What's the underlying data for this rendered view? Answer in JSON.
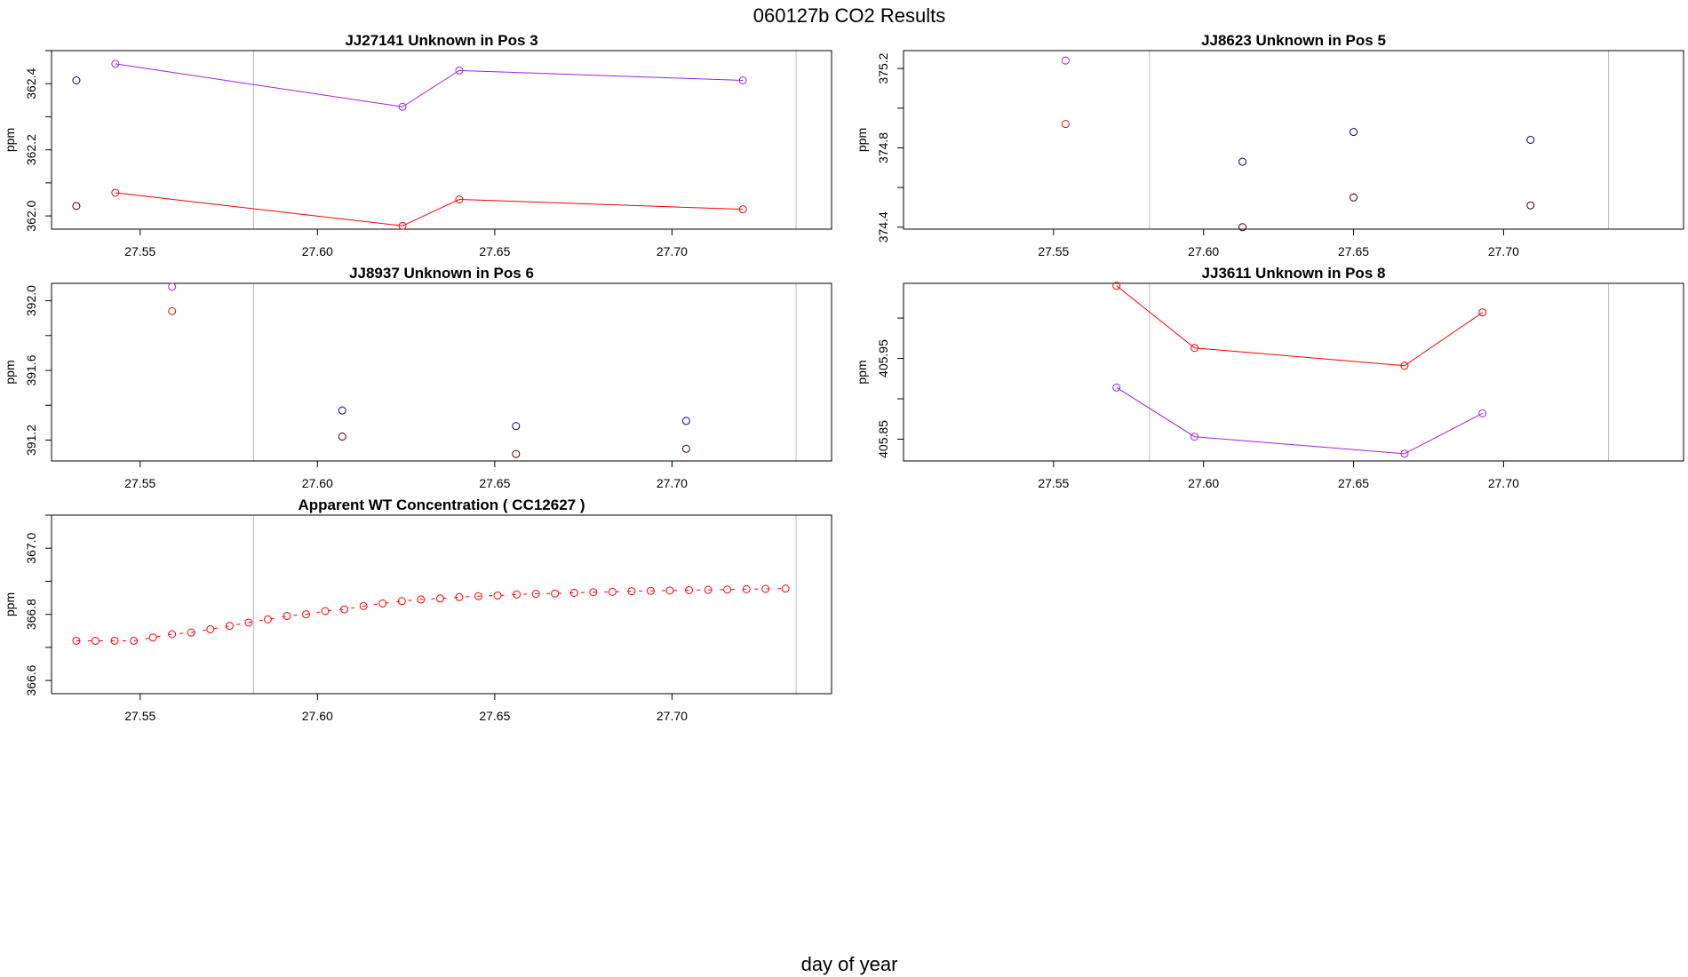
{
  "main_title": "060127b  CO2 Results",
  "xlabel": "day of year",
  "colors": {
    "purple": "#a020f0",
    "red": "#ff0000",
    "navy": "#000080",
    "dark": "#400000",
    "frame": "#000000",
    "vline": "#bebebe"
  },
  "chart_data": [
    {
      "type": "line",
      "title": "JJ27141    Unknown in Pos 3",
      "ylabel": "ppm",
      "xlim": [
        27.525,
        27.745
      ],
      "ylim": [
        361.96,
        362.5
      ],
      "xticks": [
        "27.55",
        "27.60",
        "27.65",
        "27.70"
      ],
      "yticks": [
        "362.0",
        "362.2",
        "362.4"
      ],
      "vlines": [
        27.582,
        27.735
      ],
      "series": [
        {
          "color": "purple",
          "style": "line",
          "x": [
            27.543,
            27.624,
            27.64,
            27.72
          ],
          "y": [
            362.46,
            362.33,
            362.44,
            362.41
          ]
        },
        {
          "color": "red",
          "style": "line",
          "x": [
            27.543,
            27.624,
            27.64,
            27.72
          ],
          "y": [
            362.07,
            361.97,
            362.05,
            362.02
          ]
        },
        {
          "color": "navy",
          "style": "points",
          "x": [
            27.532
          ],
          "y": [
            362.41
          ]
        },
        {
          "color": "dark",
          "style": "points",
          "x": [
            27.532
          ],
          "y": [
            362.03
          ]
        }
      ]
    },
    {
      "type": "scatter",
      "title": "JJ8623    Unknown in Pos 5",
      "ylabel": "ppm",
      "xlim": [
        27.5,
        27.76
      ],
      "ylim": [
        374.39,
        375.29
      ],
      "xticks": [
        "27.55",
        "27.60",
        "27.65",
        "27.70"
      ],
      "yticks": [
        "374.4",
        "374.8",
        "375.2"
      ],
      "vlines": [
        27.582,
        27.735
      ],
      "series": [
        {
          "color": "purple",
          "style": "points",
          "x": [
            27.554
          ],
          "y": [
            375.24
          ]
        },
        {
          "color": "red",
          "style": "points",
          "x": [
            27.554
          ],
          "y": [
            374.92
          ]
        },
        {
          "color": "navy",
          "style": "points",
          "x": [
            27.613,
            27.65,
            27.709
          ],
          "y": [
            374.73,
            374.88,
            374.84
          ]
        },
        {
          "color": "dark",
          "style": "points",
          "x": [
            27.613,
            27.65,
            27.709
          ],
          "y": [
            374.4,
            374.55,
            374.51
          ]
        }
      ]
    },
    {
      "type": "scatter",
      "title": "JJ8937    Unknown in Pos 6",
      "ylabel": "ppm",
      "xlim": [
        27.525,
        27.745
      ],
      "ylim": [
        391.08,
        392.1
      ],
      "xticks": [
        "27.55",
        "27.60",
        "27.65",
        "27.70"
      ],
      "yticks": [
        "391.2",
        "391.6",
        "392.0"
      ],
      "vlines": [
        27.582,
        27.735
      ],
      "series": [
        {
          "color": "purple",
          "style": "points",
          "x": [
            27.559
          ],
          "y": [
            392.08
          ]
        },
        {
          "color": "red",
          "style": "points",
          "x": [
            27.559
          ],
          "y": [
            391.94
          ]
        },
        {
          "color": "navy",
          "style": "points",
          "x": [
            27.607,
            27.656,
            27.704
          ],
          "y": [
            391.37,
            391.28,
            391.31
          ]
        },
        {
          "color": "dark",
          "style": "points",
          "x": [
            27.607,
            27.656,
            27.704
          ],
          "y": [
            391.22,
            391.12,
            391.15
          ]
        }
      ]
    },
    {
      "type": "line",
      "title": "JJ3611    Unknown in Pos 8",
      "ylabel": "ppm",
      "xlim": [
        27.5,
        27.76
      ],
      "ylim": [
        405.823,
        406.043
      ],
      "xticks": [
        "27.55",
        "27.60",
        "27.65",
        "27.70"
      ],
      "yticks": [
        "405.85",
        "405.95"
      ],
      "vlines": [
        27.582,
        27.735
      ],
      "series": [
        {
          "color": "red",
          "style": "line",
          "x": [
            27.571,
            27.597,
            27.667,
            27.693
          ],
          "y": [
            406.04,
            405.963,
            405.941,
            406.007
          ]
        },
        {
          "color": "purple",
          "style": "line",
          "x": [
            27.571,
            27.597,
            27.667,
            27.693
          ],
          "y": [
            405.914,
            405.853,
            405.832,
            405.882
          ]
        }
      ]
    },
    {
      "type": "line",
      "title": "Apparent WT Concentration ( CC12627 )",
      "ylabel": "ppm",
      "xlim": [
        27.525,
        27.745
      ],
      "ylim": [
        366.56,
        367.1
      ],
      "xticks": [
        "27.55",
        "27.60",
        "27.65",
        "27.70"
      ],
      "yticks": [
        "366.6",
        "366.8",
        "367.0"
      ],
      "vlines": [
        27.582,
        27.735
      ],
      "series": [
        {
          "color": "red",
          "style": "dashed-points",
          "x": [
            27.532,
            27.5374,
            27.5428,
            27.5482,
            27.5536,
            27.559,
            27.5644,
            27.5698,
            27.5752,
            27.5806,
            27.586,
            27.5914,
            27.5968,
            27.6022,
            27.6076,
            27.613,
            27.6184,
            27.6238,
            27.6292,
            27.6346,
            27.64,
            27.6454,
            27.6508,
            27.6562,
            27.6616,
            27.667,
            27.6724,
            27.6778,
            27.6832,
            27.6886,
            27.694,
            27.6994,
            27.7048,
            27.7102,
            27.7156,
            27.721,
            27.7264,
            27.732
          ],
          "y": [
            366.72,
            366.72,
            366.72,
            366.72,
            366.73,
            366.74,
            366.745,
            366.755,
            366.765,
            366.775,
            366.785,
            366.795,
            366.8,
            366.81,
            366.815,
            366.825,
            366.833,
            366.84,
            366.845,
            366.848,
            366.852,
            366.855,
            366.857,
            366.86,
            366.862,
            366.863,
            366.865,
            366.867,
            366.868,
            366.87,
            366.871,
            366.872,
            366.873,
            366.874,
            366.875,
            366.876,
            366.877,
            366.878
          ]
        }
      ]
    }
  ]
}
